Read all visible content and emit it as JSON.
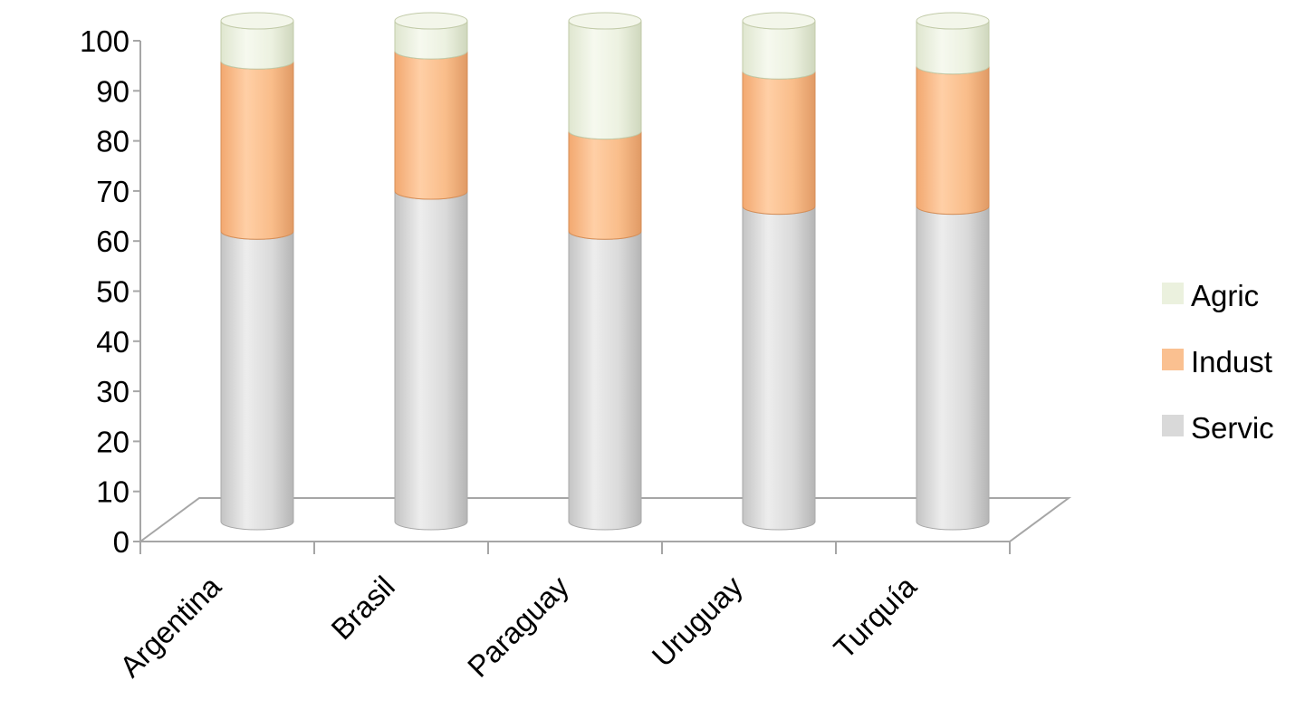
{
  "chart_data": {
    "type": "bar",
    "stacked": true,
    "style": "3d-cylinder",
    "categories": [
      "Argentina",
      "Brasil",
      "Paraguay",
      "Uruguay",
      "Turquía"
    ],
    "series": [
      {
        "name": "Servic",
        "values": [
          58,
          66,
          58,
          63,
          63
        ],
        "color": "#d9d9d9"
      },
      {
        "name": "Indust",
        "values": [
          34,
          28,
          20,
          27,
          28
        ],
        "color": "#fac090"
      },
      {
        "name": "Agric",
        "values": [
          8,
          6,
          22,
          10,
          9
        ],
        "color": "#ebf1de"
      }
    ],
    "yticks": [
      "0",
      "10",
      "20",
      "30",
      "40",
      "50",
      "60",
      "70",
      "80",
      "90",
      "100"
    ],
    "ylim": [
      0,
      100
    ],
    "legend": {
      "position": "right",
      "order": [
        "Agric",
        "Indust",
        "Servic"
      ]
    },
    "grid": false
  }
}
